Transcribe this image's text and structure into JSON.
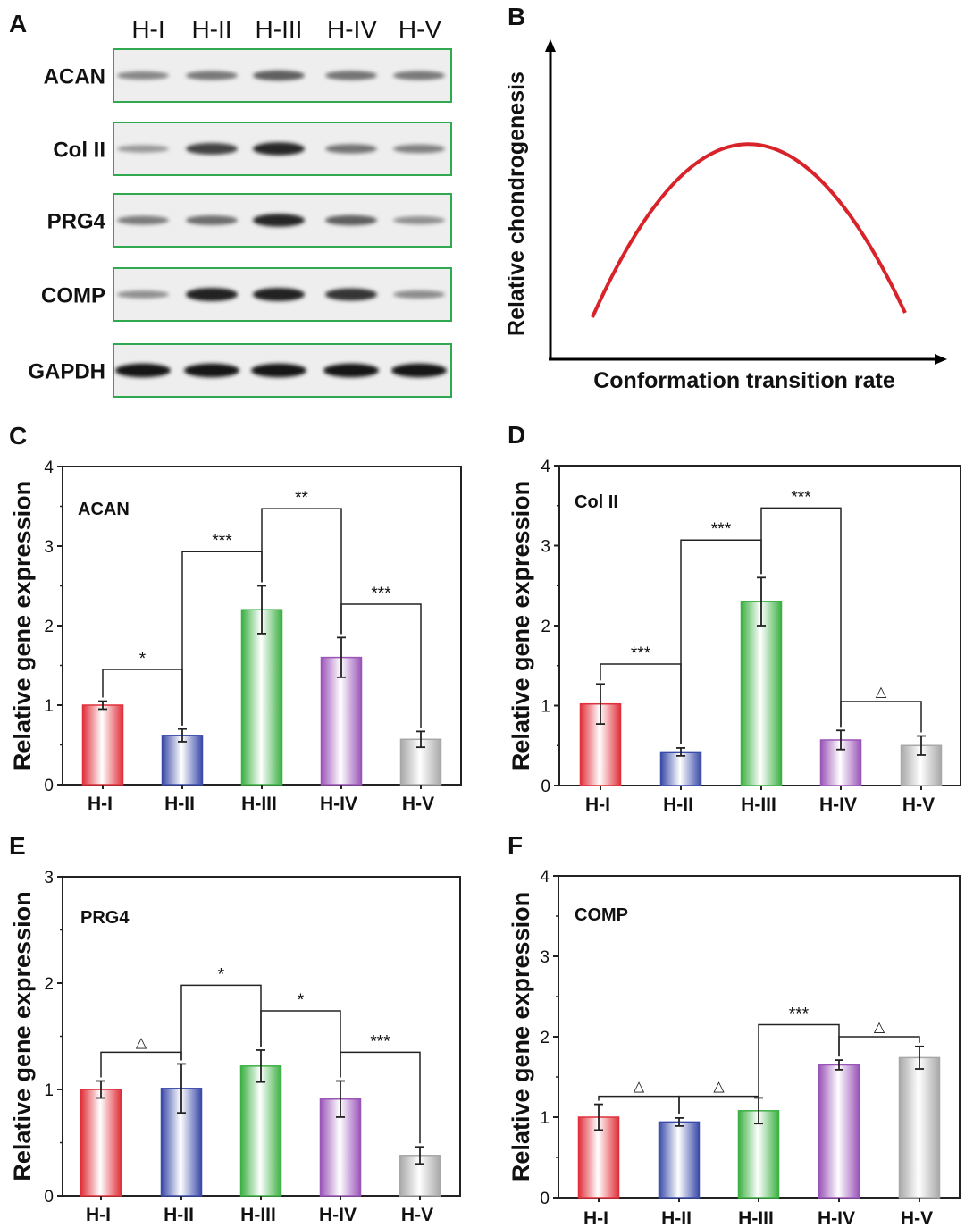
{
  "colors": {
    "H-I": "#e0303a",
    "H-II": "#3a4aa8",
    "H-III": "#3cb043",
    "H-IV": "#9a55b8",
    "H-V": "#a8a8a8",
    "curve": "#d9232a",
    "blot_border": "#2fa84f"
  },
  "panel_a": {
    "label": "A",
    "lanes": [
      "H-I",
      "H-II",
      "H-III",
      "H-IV",
      "H-V"
    ],
    "blots": [
      {
        "name": "ACAN",
        "intensity": [
          0.35,
          0.42,
          0.55,
          0.45,
          0.42
        ]
      },
      {
        "name": "Col II",
        "intensity": [
          0.25,
          0.7,
          0.85,
          0.45,
          0.38
        ]
      },
      {
        "name": "PRG4",
        "intensity": [
          0.4,
          0.48,
          0.85,
          0.55,
          0.3
        ]
      },
      {
        "name": "COMP",
        "intensity": [
          0.3,
          0.88,
          0.88,
          0.78,
          0.32
        ]
      },
      {
        "name": "GAPDH",
        "intensity": [
          0.95,
          0.95,
          0.95,
          0.95,
          0.95
        ]
      }
    ]
  },
  "panel_b": {
    "label": "B",
    "xlabel": "Conformation transition rate",
    "ylabel": "Relative chondrogenesis"
  },
  "chart_data": [
    {
      "panel": "C",
      "type": "bar",
      "gene": "ACAN",
      "categories": [
        "H-I",
        "H-II",
        "H-III",
        "H-IV",
        "H-V"
      ],
      "values": [
        1.0,
        0.62,
        2.2,
        1.6,
        0.57
      ],
      "errors": [
        0.05,
        0.08,
        0.3,
        0.25,
        0.1
      ],
      "ylabel": "Relative gene expression",
      "ylim": [
        0,
        4
      ],
      "yticks": [
        "0",
        "1",
        "2",
        "3",
        "4"
      ],
      "significance": [
        {
          "from": 0,
          "to": 1,
          "label": "*",
          "y": 1.45
        },
        {
          "from": 1,
          "to": 2,
          "label": "***",
          "y": 2.93
        },
        {
          "from": 2,
          "to": 3,
          "label": "**",
          "y": 3.47
        },
        {
          "from": 3,
          "to": 4,
          "label": "***",
          "y": 2.27
        }
      ]
    },
    {
      "panel": "D",
      "type": "bar",
      "gene": "Col  II",
      "categories": [
        "H-I",
        "H-II",
        "H-III",
        "H-IV",
        "H-V"
      ],
      "values": [
        1.02,
        0.42,
        2.3,
        0.57,
        0.5
      ],
      "errors": [
        0.25,
        0.05,
        0.3,
        0.12,
        0.12
      ],
      "ylabel": "Relative gene expression",
      "ylim": [
        0,
        4
      ],
      "yticks": [
        "0",
        "1",
        "2",
        "3",
        "4"
      ],
      "significance": [
        {
          "from": 0,
          "to": 1,
          "label": "***",
          "y": 1.52
        },
        {
          "from": 1,
          "to": 2,
          "label": "***",
          "y": 3.07
        },
        {
          "from": 2,
          "to": 3,
          "label": "***",
          "y": 3.47
        },
        {
          "from": 3,
          "to": 4,
          "label": "△",
          "y": 1.05
        }
      ]
    },
    {
      "panel": "E",
      "type": "bar",
      "gene": "PRG4",
      "categories": [
        "H-I",
        "H-II",
        "H-III",
        "H-IV",
        "H-V"
      ],
      "values": [
        1.0,
        1.01,
        1.22,
        0.91,
        0.38
      ],
      "errors": [
        0.08,
        0.23,
        0.15,
        0.17,
        0.08
      ],
      "ylabel": "Relative gene expression",
      "ylim": [
        0,
        3
      ],
      "yticks": [
        "0",
        "1",
        "2",
        "3"
      ],
      "significance": [
        {
          "from": 0,
          "to": 1,
          "label": "△",
          "y": 1.35
        },
        {
          "from": 1,
          "to": 2,
          "label": "*",
          "y": 1.98
        },
        {
          "from": 2,
          "to": 3,
          "label": "*",
          "y": 1.74
        },
        {
          "from": 3,
          "to": 4,
          "label": "***",
          "y": 1.35
        }
      ]
    },
    {
      "panel": "F",
      "type": "bar",
      "gene": "COMP",
      "categories": [
        "H-I",
        "H-II",
        "H-III",
        "H-IV",
        "H-V"
      ],
      "values": [
        1.0,
        0.94,
        1.08,
        1.65,
        1.74
      ],
      "errors": [
        0.16,
        0.05,
        0.16,
        0.06,
        0.14
      ],
      "ylabel": "Relative gene expression",
      "ylim": [
        0,
        4
      ],
      "yticks": [
        "0",
        "1",
        "2",
        "3",
        "4"
      ],
      "significance": [
        {
          "from": 0,
          "to": 1,
          "label": "△",
          "y": 1.26
        },
        {
          "from": 1,
          "to": 2,
          "label": "△",
          "y": 1.26
        },
        {
          "from": 2,
          "to": 3,
          "label": "***",
          "y": 2.15
        },
        {
          "from": 3,
          "to": 4,
          "label": "△",
          "y": 2.0
        }
      ]
    }
  ]
}
